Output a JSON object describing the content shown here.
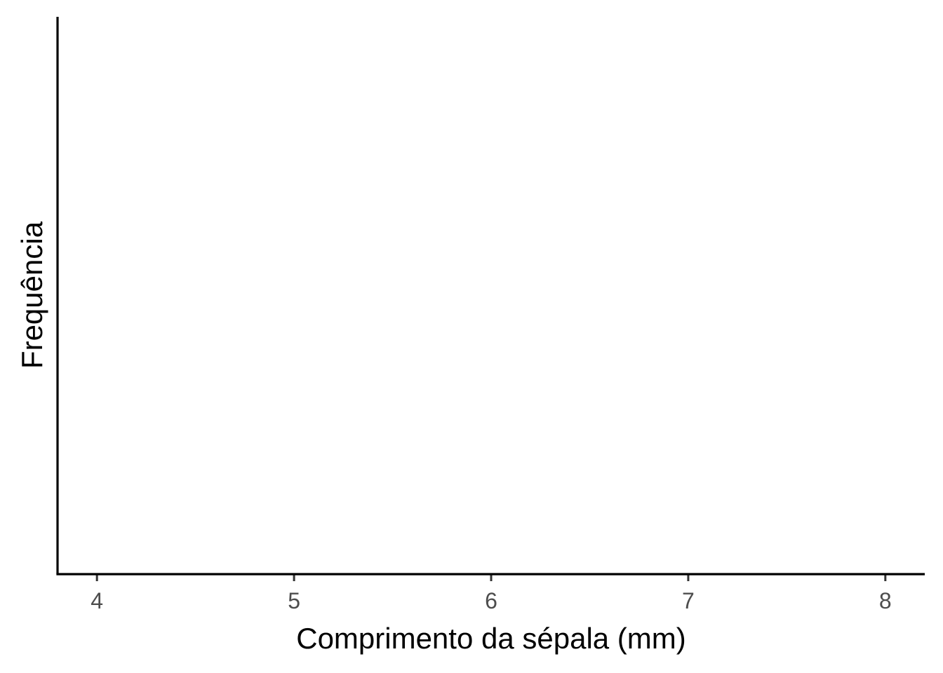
{
  "chart_data": {
    "type": "bar",
    "title": "",
    "xlabel": "Comprimento da sépala (mm)",
    "ylabel": "Frequência",
    "x_ticks": [
      4,
      5,
      6,
      7,
      8
    ],
    "x_tick_labels": [
      "4",
      "5",
      "6",
      "7",
      "8"
    ],
    "xlim": [
      3.8,
      8.2
    ],
    "series": [],
    "grid": false,
    "legend": "none",
    "colors": {
      "axis": "#000000",
      "tick": "#333333",
      "tick_label": "#4d4d4d",
      "background": "#ffffff"
    }
  }
}
